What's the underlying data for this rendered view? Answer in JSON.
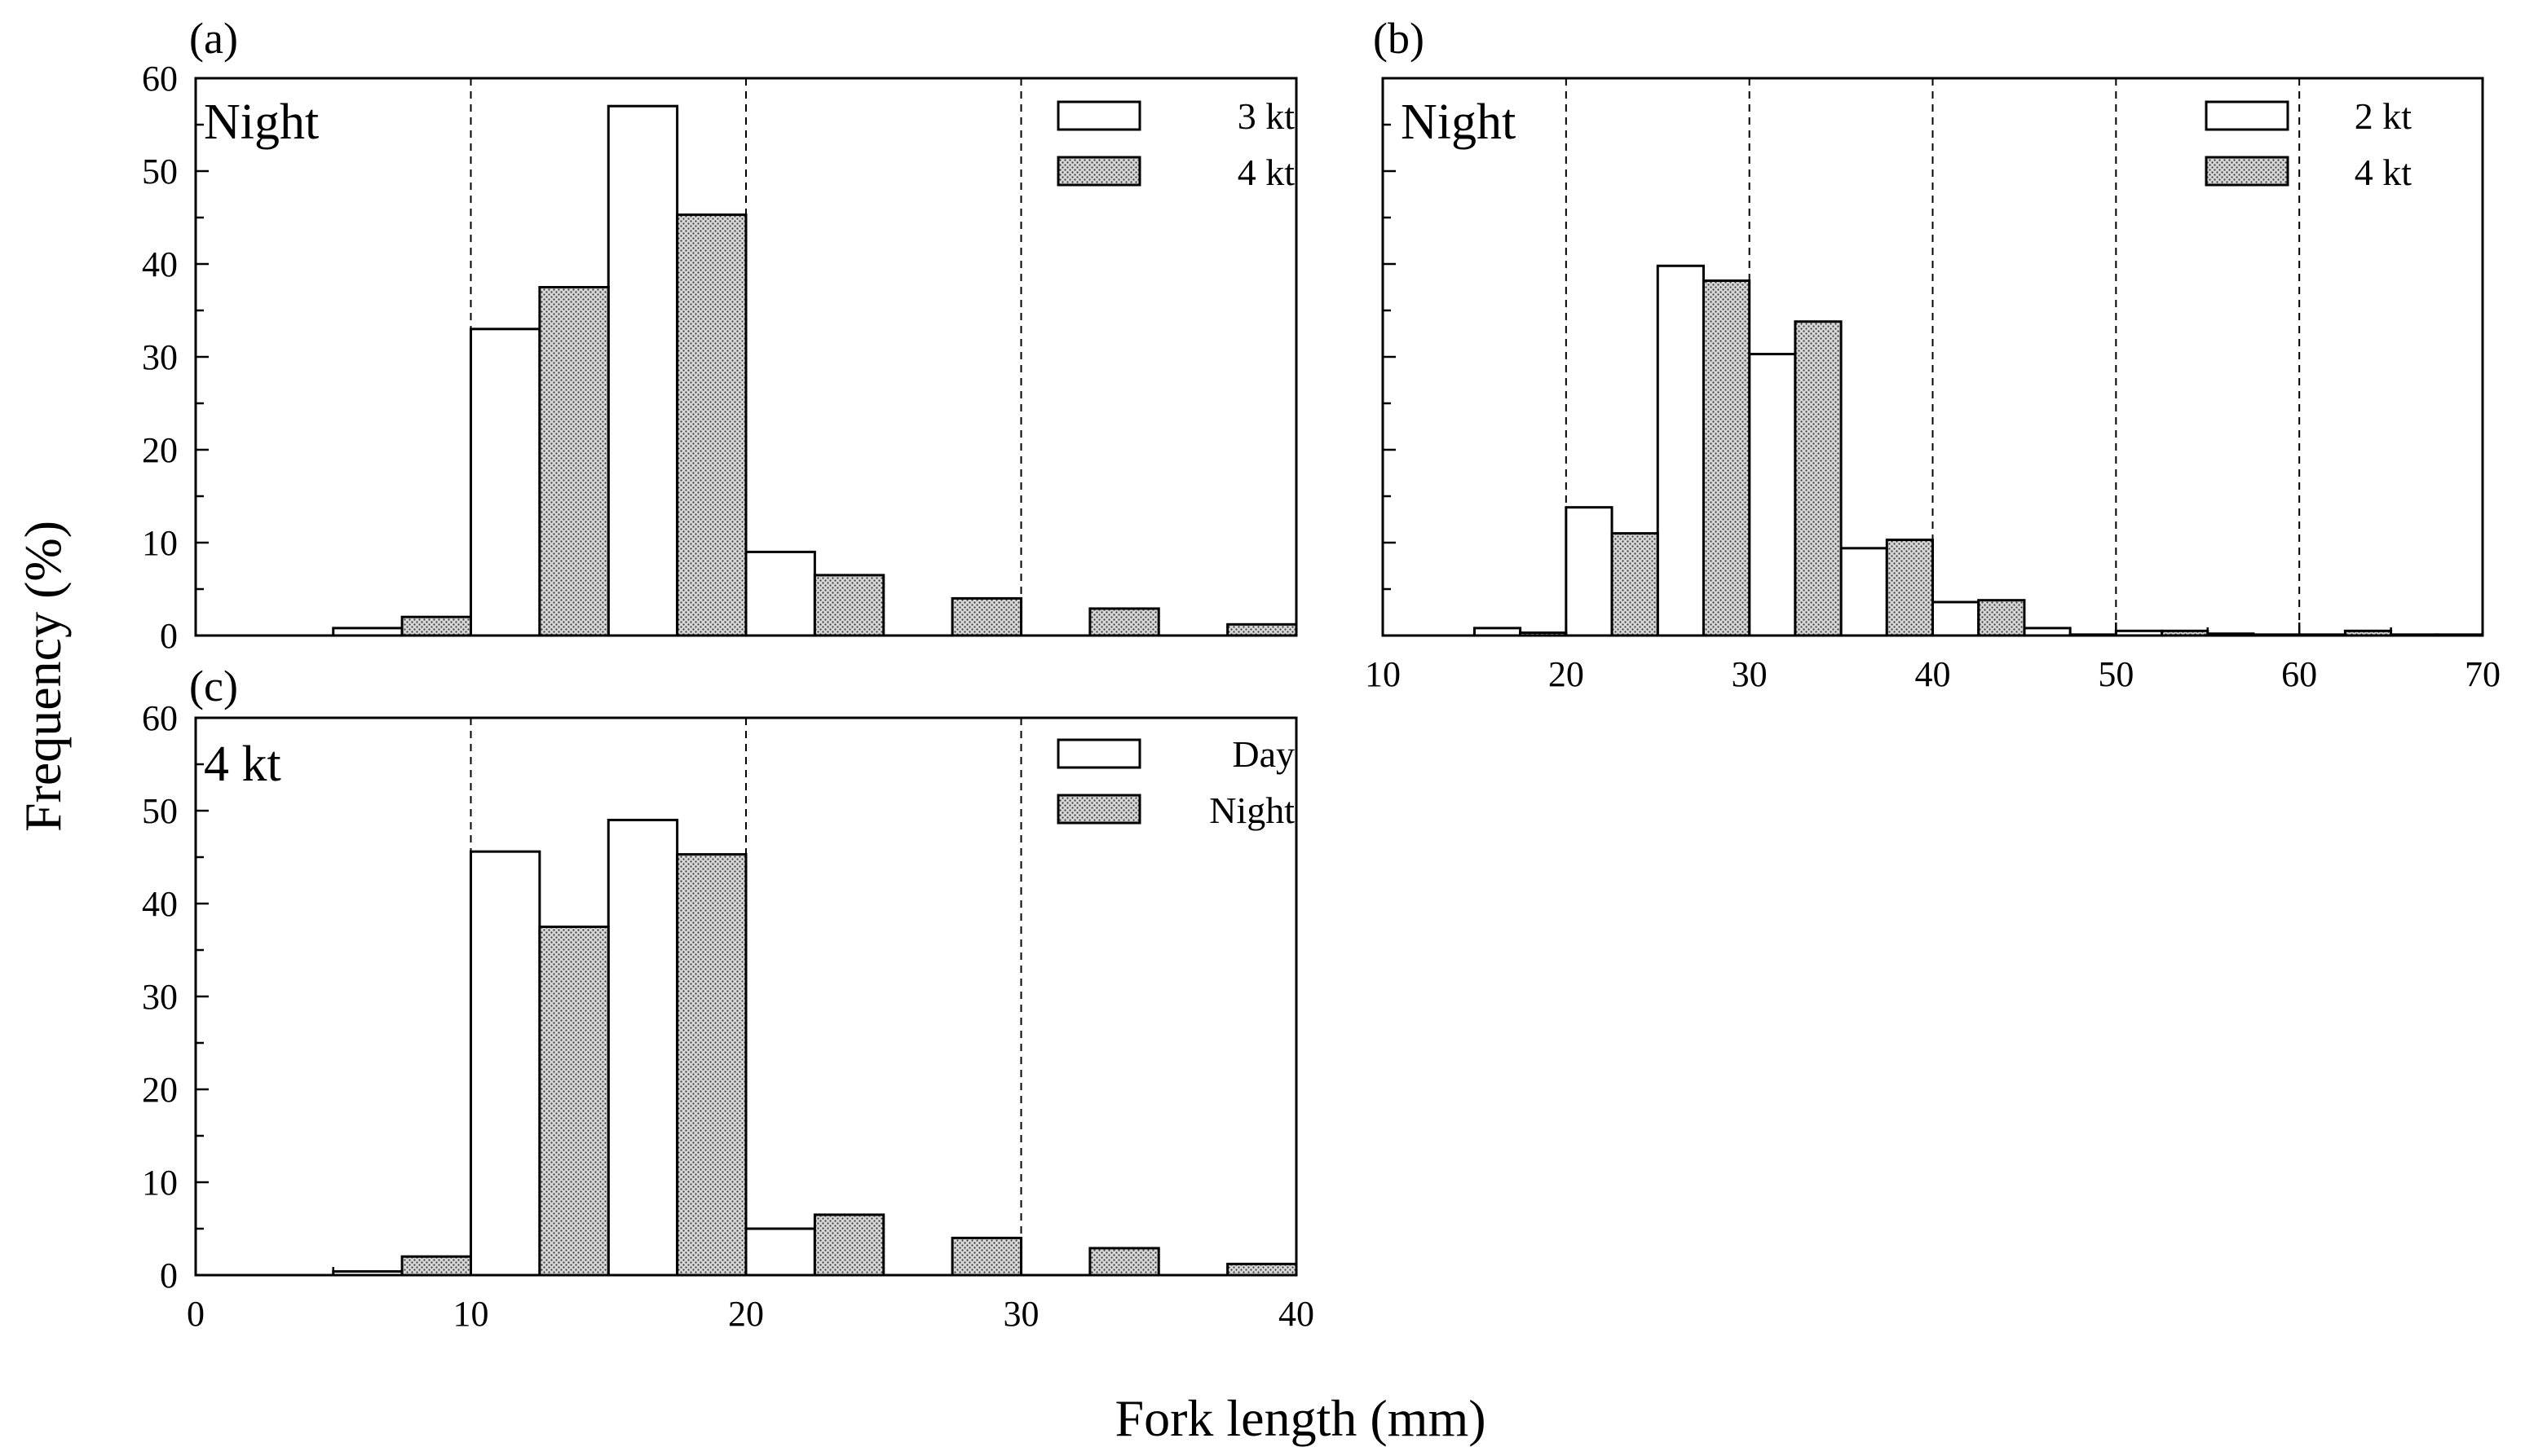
{
  "figure": {
    "ylabel": "Frequency (%)",
    "xlabel": "Fork length (mm)"
  },
  "colors": {
    "open_fill": "#ffffff",
    "stipple_fill": "#d6d6d6",
    "stipple_dot": "#3a3a3a",
    "line": "#000000"
  },
  "chart_data": [
    {
      "id": "a",
      "type": "bar",
      "panel_label": "(a)",
      "condition_label": "Night",
      "bin_width": 5,
      "xlim": [
        0,
        40
      ],
      "ylim": [
        0,
        60
      ],
      "x_ticks": [],
      "y_ticks": [
        0,
        10,
        20,
        30,
        40,
        50,
        60
      ],
      "x_minor_step": 5,
      "y_minor_step": 5,
      "reference_lines": [
        10,
        20,
        30
      ],
      "legend": [
        {
          "name": "3 kt",
          "style": "open"
        },
        {
          "name": "4 kt",
          "style": "stipple"
        }
      ],
      "series": [
        {
          "name": "3 kt",
          "style": "open",
          "bin_starts": [
            5,
            10,
            15,
            20
          ],
          "values": [
            0.8,
            33.0,
            57.0,
            9.0
          ]
        },
        {
          "name": "4 kt",
          "style": "stipple",
          "bin_starts": [
            5,
            10,
            15,
            20,
            25,
            30,
            35
          ],
          "values": [
            2.0,
            37.5,
            45.3,
            6.5,
            4.0,
            2.9,
            1.2
          ]
        }
      ]
    },
    {
      "id": "b",
      "type": "bar",
      "panel_label": "(b)",
      "condition_label": "Night",
      "bin_width": 5,
      "xlim": [
        10,
        70
      ],
      "ylim": [
        0,
        60
      ],
      "x_ticks": [
        10,
        20,
        30,
        40,
        50,
        60,
        70
      ],
      "y_ticks": [],
      "x_minor_step": 5,
      "y_minor_step": 5,
      "reference_lines": [
        20,
        30,
        40,
        50,
        60
      ],
      "legend": [
        {
          "name": "2 kt",
          "style": "open"
        },
        {
          "name": "4 kt",
          "style": "stipple"
        }
      ],
      "series": [
        {
          "name": "2 kt",
          "style": "open",
          "bin_starts": [
            15,
            20,
            25,
            30,
            35,
            40,
            45,
            50,
            55,
            60,
            65
          ],
          "values": [
            0.8,
            13.8,
            39.8,
            30.3,
            9.4,
            3.6,
            0.8,
            0.5,
            0.2,
            0.1,
            0.1
          ]
        },
        {
          "name": "4 kt",
          "style": "stipple",
          "bin_starts": [
            15,
            20,
            25,
            30,
            35,
            40,
            45,
            50,
            55,
            60,
            65
          ],
          "values": [
            0.3,
            11.0,
            38.2,
            33.8,
            10.3,
            3.8,
            0.1,
            0.5,
            0.1,
            0.5,
            0.1
          ]
        }
      ]
    },
    {
      "id": "c",
      "type": "bar",
      "panel_label": "(c)",
      "condition_label": "4 kt",
      "bin_width": 5,
      "xlim": [
        0,
        40
      ],
      "ylim": [
        0,
        60
      ],
      "x_ticks": [
        0,
        10,
        20,
        30,
        40
      ],
      "y_ticks": [
        0,
        10,
        20,
        30,
        40,
        50,
        60
      ],
      "x_minor_step": 5,
      "y_minor_step": 5,
      "reference_lines": [
        10,
        20,
        30
      ],
      "legend": [
        {
          "name": "Day",
          "style": "open"
        },
        {
          "name": "Night",
          "style": "stipple"
        }
      ],
      "series": [
        {
          "name": "Day",
          "style": "open",
          "bin_starts": [
            5,
            10,
            15,
            20
          ],
          "values": [
            0.4,
            45.6,
            49.0,
            5.0
          ]
        },
        {
          "name": "Night",
          "style": "stipple",
          "bin_starts": [
            5,
            10,
            15,
            20,
            25,
            30,
            35
          ],
          "values": [
            2.0,
            37.5,
            45.3,
            6.5,
            4.0,
            2.9,
            1.2
          ]
        }
      ]
    }
  ]
}
